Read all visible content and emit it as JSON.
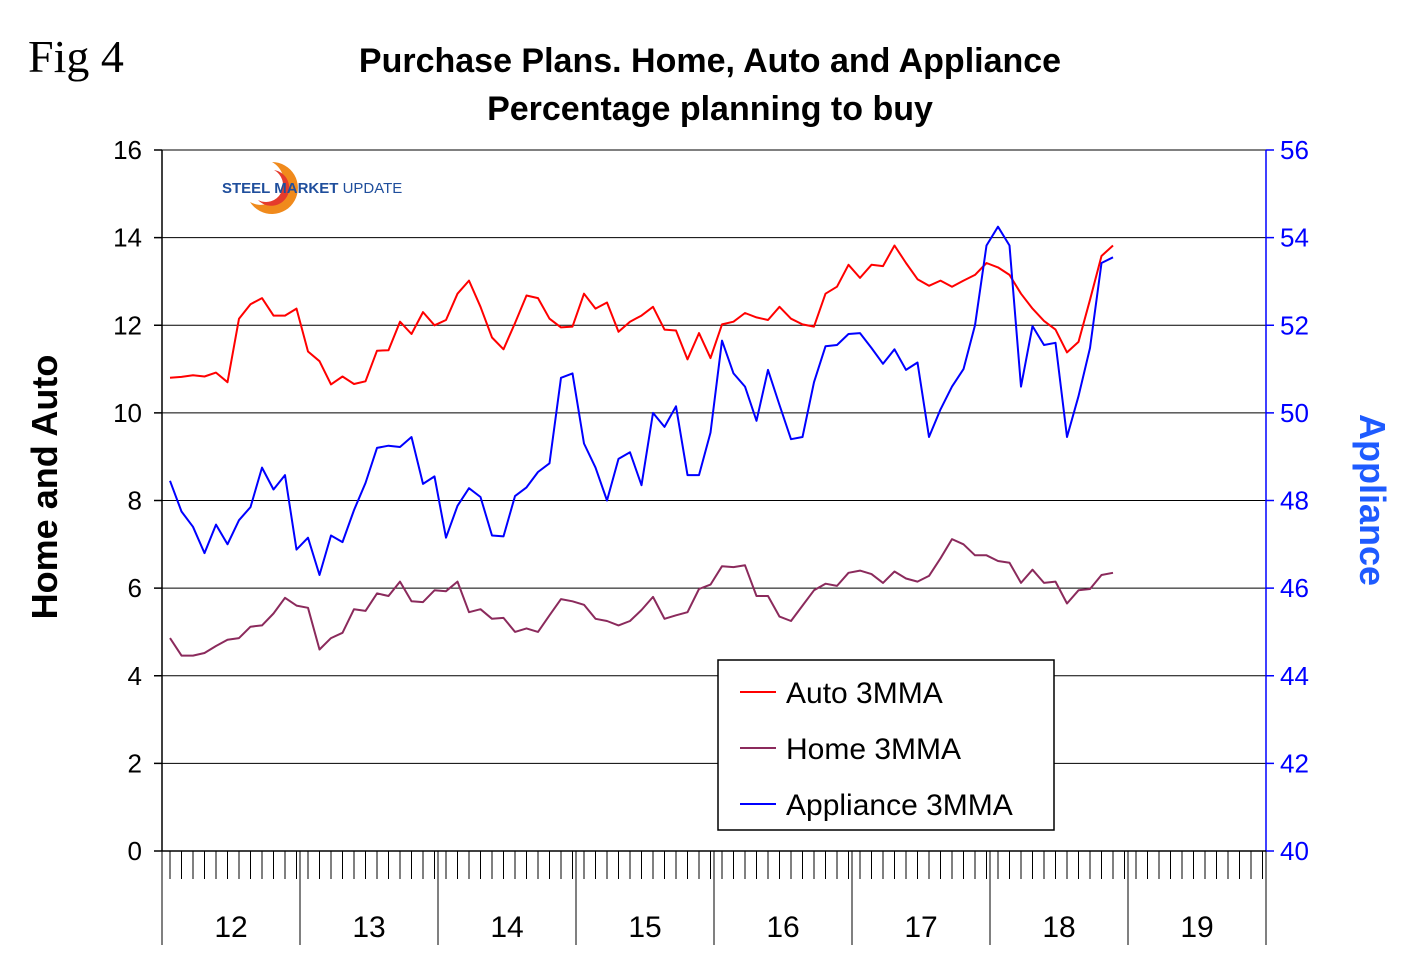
{
  "fig_label": "Fig 4",
  "logo": {
    "bold": "STEEL MARKET",
    "light": " UPDATE"
  },
  "chart_data": {
    "type": "line",
    "title": "Purchase Plans. Home, Auto and Appliance",
    "subtitle": "Percentage planning to buy",
    "ylabel_left": "Home and Auto",
    "ylabel_right": "Appliance",
    "ylim_left": [
      0,
      16
    ],
    "ylim_right": [
      40,
      56
    ],
    "yticks_left": [
      "0",
      "2",
      "4",
      "6",
      "8",
      "10",
      "12",
      "14",
      "16"
    ],
    "yticks_right": [
      "40",
      "42",
      "44",
      "46",
      "48",
      "50",
      "52",
      "54",
      "56"
    ],
    "year_labels": [
      "12",
      "13",
      "14",
      "15",
      "16",
      "17",
      "18",
      "19"
    ],
    "months_per_year": 12,
    "grid": "horizontal",
    "legend_position": "bottom-right",
    "colors": {
      "auto": "#ff0000",
      "home": "#8b2a5c",
      "appliance": "#0000ff"
    },
    "series": [
      {
        "name": "Auto 3MMA",
        "axis": "left",
        "values": [
          10.8,
          10.82,
          10.86,
          10.83,
          10.92,
          10.7,
          12.15,
          12.48,
          12.62,
          12.22,
          12.22,
          12.38,
          11.4,
          11.18,
          10.65,
          10.83,
          10.66,
          10.72,
          11.42,
          11.43,
          12.08,
          11.8,
          12.3,
          12.0,
          12.12,
          12.72,
          13.02,
          12.42,
          11.72,
          11.45,
          12.05,
          12.68,
          12.62,
          12.15,
          11.95,
          11.97,
          12.72,
          12.38,
          12.52,
          11.85,
          12.08,
          12.22,
          12.42,
          11.9,
          11.88,
          11.22,
          11.82,
          11.25,
          12.02,
          12.08,
          12.28,
          12.18,
          12.12,
          12.42,
          12.15,
          12.02,
          11.97,
          12.72,
          12.88,
          13.38,
          13.08,
          13.38,
          13.35,
          13.82,
          13.42,
          13.05,
          12.9,
          13.02,
          12.88,
          13.02,
          13.15,
          13.42,
          13.32,
          13.15,
          12.72,
          12.38,
          12.1,
          11.9,
          11.38,
          11.62,
          12.58,
          13.58,
          13.82
        ]
      },
      {
        "name": "Home 3MMA",
        "axis": "left",
        "values": [
          4.86,
          4.46,
          4.46,
          4.52,
          4.68,
          4.82,
          4.86,
          5.12,
          5.15,
          5.42,
          5.78,
          5.6,
          5.55,
          4.6,
          4.86,
          4.98,
          5.52,
          5.48,
          5.88,
          5.82,
          6.15,
          5.7,
          5.68,
          5.95,
          5.93,
          6.15,
          5.45,
          5.52,
          5.3,
          5.32,
          5.0,
          5.08,
          5.0,
          5.38,
          5.75,
          5.7,
          5.62,
          5.3,
          5.25,
          5.15,
          5.25,
          5.5,
          5.8,
          5.3,
          5.38,
          5.45,
          5.98,
          6.08,
          6.5,
          6.48,
          6.52,
          5.82,
          5.82,
          5.35,
          5.25,
          5.6,
          5.95,
          6.1,
          6.05,
          6.35,
          6.4,
          6.32,
          6.12,
          6.38,
          6.22,
          6.15,
          6.28,
          6.68,
          7.12,
          7.0,
          6.75,
          6.75,
          6.62,
          6.58,
          6.12,
          6.42,
          6.12,
          6.15,
          5.65,
          5.95,
          5.98,
          6.3,
          6.35
        ]
      },
      {
        "name": "Appliance 3MMA",
        "axis": "right",
        "values": [
          48.45,
          47.75,
          47.4,
          46.8,
          47.45,
          47.0,
          47.55,
          47.85,
          48.75,
          48.25,
          48.58,
          46.88,
          47.15,
          46.3,
          47.2,
          47.05,
          47.78,
          48.4,
          49.2,
          49.25,
          49.22,
          49.45,
          48.38,
          48.55,
          47.15,
          47.88,
          48.28,
          48.08,
          47.2,
          47.18,
          48.1,
          48.3,
          48.65,
          48.85,
          50.8,
          50.9,
          49.3,
          48.75,
          48.0,
          48.95,
          49.1,
          48.35,
          50.0,
          49.68,
          50.15,
          48.58,
          48.58,
          49.55,
          51.65,
          50.9,
          50.6,
          49.82,
          50.98,
          50.18,
          49.4,
          49.45,
          50.7,
          51.52,
          51.55,
          51.8,
          51.82,
          51.48,
          51.12,
          51.45,
          50.98,
          51.15,
          49.45,
          50.08,
          50.6,
          51.0,
          52.0,
          53.82,
          54.25,
          53.82,
          50.6,
          51.98,
          51.55,
          51.6,
          49.45,
          50.38,
          51.48,
          53.42,
          53.55
        ]
      }
    ]
  }
}
